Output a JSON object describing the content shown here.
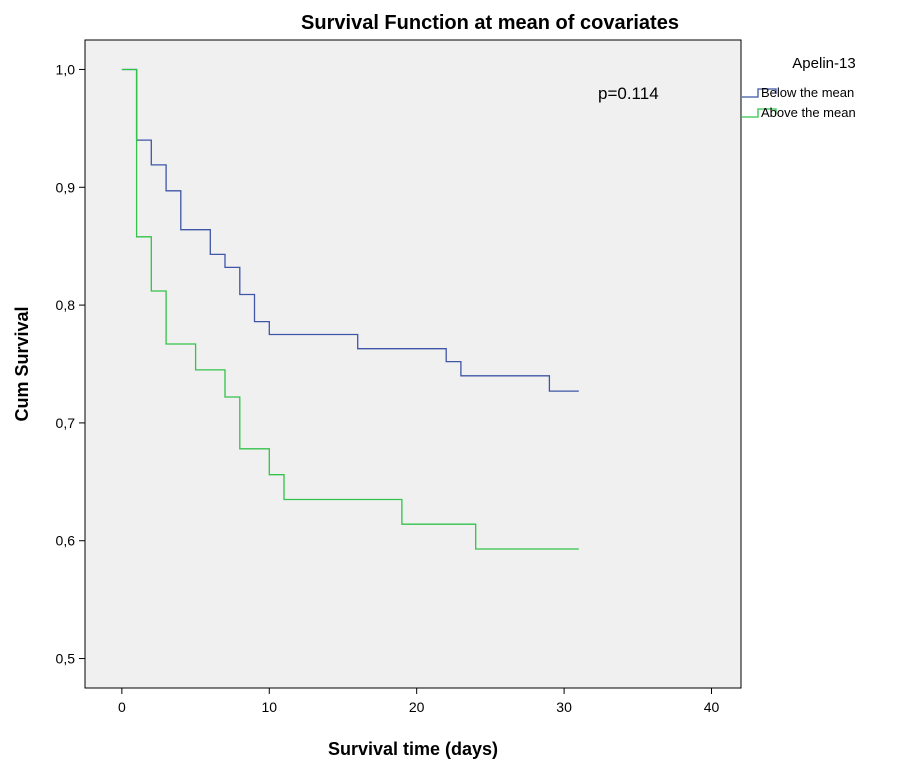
{
  "chart_data": {
    "type": "line",
    "step": true,
    "title": "Survival Function at mean of covariates",
    "xlabel": "Survival time (days)",
    "ylabel": "Cum Survival",
    "xlim": [
      -2.5,
      42
    ],
    "ylim": [
      0.475,
      1.025
    ],
    "xticks": [
      0,
      10,
      20,
      30,
      40
    ],
    "xtick_labels": [
      "0",
      "10",
      "20",
      "30",
      "40"
    ],
    "yticks": [
      0.5,
      0.6,
      0.7,
      0.8,
      0.9,
      1.0
    ],
    "ytick_labels": [
      "0,5",
      "0,6",
      "0,7",
      "0,8",
      "0,9",
      "1,0"
    ],
    "grid": false,
    "background": "#f0f0f0",
    "legend": {
      "title": "Apelin-13",
      "placement": "outside-right-top"
    },
    "annotation": "p=0.114",
    "series": [
      {
        "name": "Below the mean",
        "color": "#3f56a8",
        "points": [
          [
            0,
            1.0
          ],
          [
            1,
            0.94
          ],
          [
            2,
            0.919
          ],
          [
            3,
            0.897
          ],
          [
            4,
            0.864
          ],
          [
            6,
            0.843
          ],
          [
            7,
            0.832
          ],
          [
            8,
            0.809
          ],
          [
            9,
            0.786
          ],
          [
            10,
            0.775
          ],
          [
            16,
            0.763
          ],
          [
            22,
            0.752
          ],
          [
            23,
            0.74
          ],
          [
            29,
            0.727
          ],
          [
            31,
            0.727
          ]
        ]
      },
      {
        "name": "Above the mean",
        "color": "#33c24a",
        "points": [
          [
            0,
            1.0
          ],
          [
            1,
            0.858
          ],
          [
            2,
            0.812
          ],
          [
            3,
            0.767
          ],
          [
            5,
            0.745
          ],
          [
            7,
            0.722
          ],
          [
            8,
            0.678
          ],
          [
            10,
            0.656
          ],
          [
            11,
            0.635
          ],
          [
            19,
            0.614
          ],
          [
            24,
            0.593
          ],
          [
            31,
            0.593
          ]
        ]
      }
    ]
  }
}
